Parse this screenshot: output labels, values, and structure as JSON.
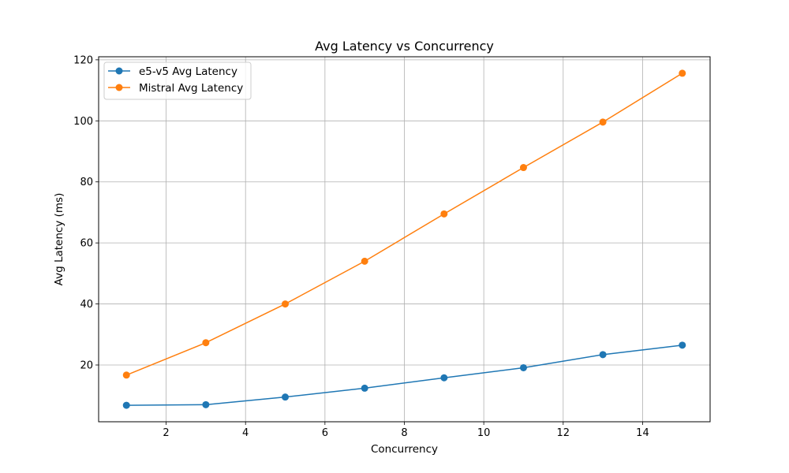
{
  "chart_data": {
    "type": "line",
    "title": "Avg Latency vs Concurrency",
    "xlabel": "Concurrency",
    "ylabel": "Avg Latency (ms)",
    "x": [
      1,
      3,
      5,
      7,
      9,
      11,
      13,
      15
    ],
    "series": [
      {
        "name": "e5-v5 Avg Latency",
        "color": "#1f77b4",
        "values": [
          6.8,
          7.0,
          9.5,
          12.4,
          15.8,
          19.1,
          23.4,
          26.5
        ]
      },
      {
        "name": "Mistral Avg Latency",
        "color": "#ff7f0e",
        "values": [
          16.7,
          27.3,
          40.0,
          54.0,
          69.5,
          84.7,
          99.6,
          115.6
        ]
      }
    ],
    "xlim": [
      0.3,
      15.7
    ],
    "ylim": [
      1.4,
      121.0
    ],
    "xticks": [
      2,
      4,
      6,
      8,
      10,
      12,
      14
    ],
    "yticks": [
      20,
      40,
      60,
      80,
      100,
      120
    ],
    "grid": true,
    "legend_position": "upper-left"
  }
}
